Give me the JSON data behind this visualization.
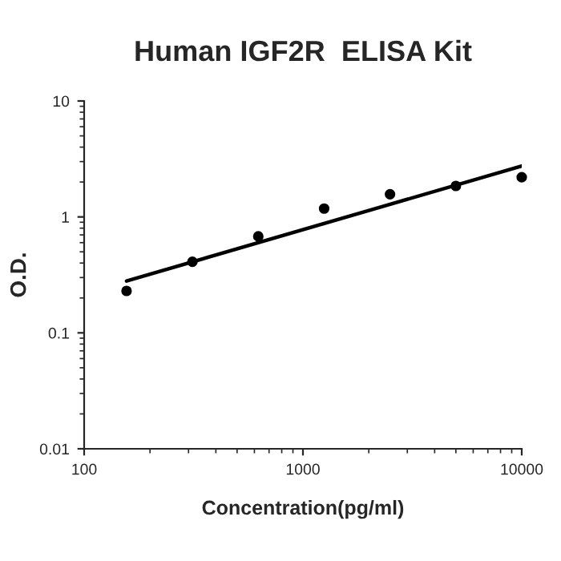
{
  "chart_data": {
    "type": "scatter",
    "title": "Human IGF2R  ELISA Kit",
    "xlabel": "Concentration(pg/ml)",
    "ylabel": "O.D.",
    "log": "xy",
    "grid": false,
    "legend": false,
    "xlim": [
      100,
      10000
    ],
    "xticks": [
      100,
      1000,
      10000
    ],
    "ylim": [
      0.01,
      10
    ],
    "yticks": [
      0.01,
      0.1,
      1,
      10
    ],
    "series": [
      {
        "marker": "circle",
        "color": "#000000",
        "x": [
          156.25,
          312.5,
          625,
          1250,
          2500,
          5000,
          10000
        ],
        "values": [
          0.23,
          0.41,
          0.68,
          1.18,
          1.57,
          1.85,
          2.2
        ]
      },
      {
        "type": "line",
        "color": "#000000",
        "line_style": "solid",
        "x": [
          156.25,
          10000
        ],
        "values": [
          0.28,
          2.75
        ]
      }
    ]
  }
}
